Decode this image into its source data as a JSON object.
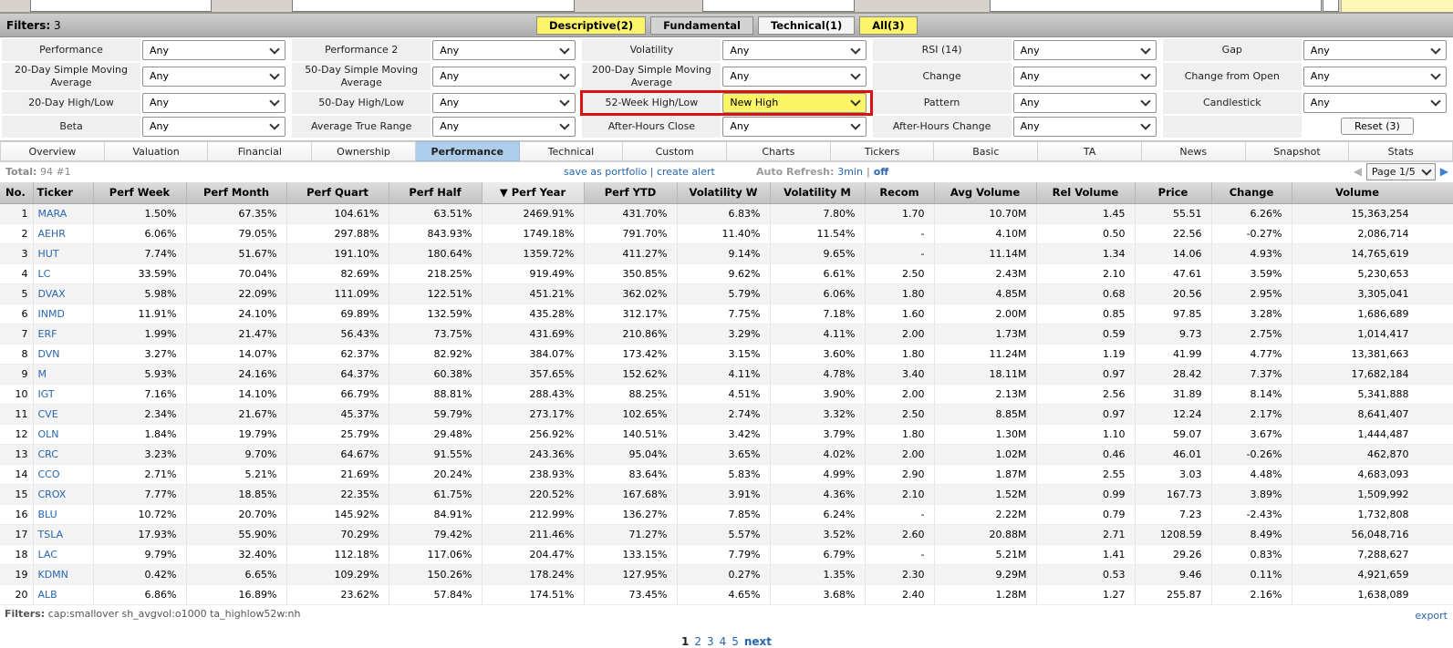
{
  "filters_bar": {
    "label": "Filters:",
    "count": "3",
    "tabs": [
      {
        "label": "Descriptive(2)",
        "variant": "yellow"
      },
      {
        "label": "Fundamental",
        "variant": "gray"
      },
      {
        "label": "Technical(1)",
        "variant": "light"
      },
      {
        "label": "All(3)",
        "variant": "yellow"
      }
    ]
  },
  "filters": {
    "rows": [
      [
        {
          "label": "Performance",
          "value": "Any"
        },
        {
          "label": "Performance 2",
          "value": "Any"
        },
        {
          "label": "Volatility",
          "value": "Any"
        },
        {
          "label": "RSI (14)",
          "value": "Any"
        },
        {
          "label": "Gap",
          "value": "Any"
        }
      ],
      [
        {
          "label": "20-Day Simple Moving Average",
          "value": "Any"
        },
        {
          "label": "50-Day Simple Moving Average",
          "value": "Any"
        },
        {
          "label": "200-Day Simple Moving Average",
          "value": "Any"
        },
        {
          "label": "Change",
          "value": "Any"
        },
        {
          "label": "Change from Open",
          "value": "Any"
        }
      ],
      [
        {
          "label": "20-Day High/Low",
          "value": "Any"
        },
        {
          "label": "50-Day High/Low",
          "value": "Any"
        },
        {
          "label": "52-Week High/Low",
          "value": "New High",
          "highlight": true
        },
        {
          "label": "Pattern",
          "value": "Any"
        },
        {
          "label": "Candlestick",
          "value": "Any"
        }
      ],
      [
        {
          "label": "Beta",
          "value": "Any"
        },
        {
          "label": "Average True Range",
          "value": "Any"
        },
        {
          "label": "After-Hours Close",
          "value": "Any"
        },
        {
          "label": "After-Hours Change",
          "value": "Any"
        },
        {
          "label": "",
          "reset": "Reset (3)"
        }
      ]
    ]
  },
  "view_tabs": {
    "items": [
      "Overview",
      "Valuation",
      "Financial",
      "Ownership",
      "Performance",
      "Technical",
      "Custom",
      "Charts",
      "Tickers",
      "Basic",
      "TA",
      "News",
      "Snapshot",
      "Stats"
    ],
    "active": "Performance"
  },
  "status": {
    "total_label": "Total:",
    "total": "94",
    "position": "#1",
    "save_link": "save as portfolio",
    "divider": "|",
    "alert_link": "create alert",
    "auto_refresh_label": "Auto Refresh:",
    "auto_refresh_value": "3min",
    "auto_refresh_off": "off",
    "page_select": "Page 1/5"
  },
  "table": {
    "sort_arrow": "▼",
    "columns": [
      {
        "label": "No.",
        "key": "no",
        "type": "no"
      },
      {
        "label": "Ticker",
        "key": "ticker",
        "type": "ticker"
      },
      {
        "label": "Perf Week",
        "key": "perf_week",
        "type": "perf"
      },
      {
        "label": "Perf Month",
        "key": "perf_month",
        "type": "perf"
      },
      {
        "label": "Perf Quart",
        "key": "perf_quart",
        "type": "perf"
      },
      {
        "label": "Perf Half",
        "key": "perf_half",
        "type": "perf"
      },
      {
        "label": "Perf Year",
        "key": "perf_year",
        "type": "perf",
        "sorted": true
      },
      {
        "label": "Perf YTD",
        "key": "perf_ytd",
        "type": "perf"
      },
      {
        "label": "Volatility W",
        "key": "vol_w",
        "type": "num"
      },
      {
        "label": "Volatility M",
        "key": "vol_m",
        "type": "num"
      },
      {
        "label": "Recom",
        "key": "recom",
        "type": "recom"
      },
      {
        "label": "Avg Volume",
        "key": "avg_volume",
        "type": "num"
      },
      {
        "label": "Rel Volume",
        "key": "rel_volume",
        "type": "num"
      },
      {
        "label": "Price",
        "key": "price",
        "type": "price"
      },
      {
        "label": "Change",
        "key": "change",
        "type": "change"
      },
      {
        "label": "Volume",
        "key": "volume",
        "type": "num",
        "last": true
      }
    ],
    "rows": [
      {
        "no": "1",
        "ticker": "MARA",
        "perf_week": "1.50%",
        "perf_month": "67.35%",
        "perf_quart": "104.61%",
        "perf_half": "63.51%",
        "perf_year": "2469.91%",
        "perf_ytd": "431.70%",
        "vol_w": "6.83%",
        "vol_m": "7.80%",
        "recom": "1.70",
        "recom_color": "green",
        "avg_volume": "10.70M",
        "rel_volume": "1.45",
        "price": "55.51",
        "change": "6.26%",
        "volume": "15,363,254"
      },
      {
        "no": "2",
        "ticker": "AEHR",
        "perf_week": "6.06%",
        "perf_month": "79.05%",
        "perf_quart": "297.88%",
        "perf_half": "843.93%",
        "perf_year": "1749.18%",
        "perf_ytd": "791.70%",
        "vol_w": "11.40%",
        "vol_m": "11.54%",
        "recom": "-",
        "recom_color": "black",
        "avg_volume": "4.10M",
        "rel_volume": "0.50",
        "price": "22.56",
        "change": "-0.27%",
        "volume": "2,086,714"
      },
      {
        "no": "3",
        "ticker": "HUT",
        "perf_week": "7.74%",
        "perf_month": "51.67%",
        "perf_quart": "191.10%",
        "perf_half": "180.64%",
        "perf_year": "1359.72%",
        "perf_ytd": "411.27%",
        "vol_w": "9.14%",
        "vol_m": "9.65%",
        "recom": "-",
        "recom_color": "black",
        "avg_volume": "11.14M",
        "rel_volume": "1.34",
        "price": "14.06",
        "change": "4.93%",
        "volume": "14,765,619"
      },
      {
        "no": "4",
        "ticker": "LC",
        "perf_week": "33.59%",
        "perf_month": "70.04%",
        "perf_quart": "82.69%",
        "perf_half": "218.25%",
        "perf_year": "919.49%",
        "perf_ytd": "350.85%",
        "vol_w": "9.62%",
        "vol_m": "6.61%",
        "recom": "2.50",
        "recom_color": "black",
        "avg_volume": "2.43M",
        "rel_volume": "2.10",
        "price": "47.61",
        "change": "3.59%",
        "volume": "5,230,653"
      },
      {
        "no": "5",
        "ticker": "DVAX",
        "perf_week": "5.98%",
        "perf_month": "22.09%",
        "perf_quart": "111.09%",
        "perf_half": "122.51%",
        "perf_year": "451.21%",
        "perf_ytd": "362.02%",
        "vol_w": "5.79%",
        "vol_m": "6.06%",
        "recom": "1.80",
        "recom_color": "green",
        "avg_volume": "4.85M",
        "rel_volume": "0.68",
        "price": "20.56",
        "change": "2.95%",
        "volume": "3,305,041"
      },
      {
        "no": "6",
        "ticker": "INMD",
        "perf_week": "11.91%",
        "perf_month": "24.10%",
        "perf_quart": "69.89%",
        "perf_half": "132.59%",
        "perf_year": "435.28%",
        "perf_ytd": "312.17%",
        "vol_w": "7.75%",
        "vol_m": "7.18%",
        "recom": "1.60",
        "recom_color": "green",
        "avg_volume": "2.00M",
        "rel_volume": "0.85",
        "price": "97.85",
        "change": "3.28%",
        "volume": "1,686,689"
      },
      {
        "no": "7",
        "ticker": "ERF",
        "perf_week": "1.99%",
        "perf_month": "21.47%",
        "perf_quart": "56.43%",
        "perf_half": "73.75%",
        "perf_year": "431.69%",
        "perf_ytd": "210.86%",
        "vol_w": "3.29%",
        "vol_m": "4.11%",
        "recom": "2.00",
        "recom_color": "black",
        "avg_volume": "1.73M",
        "rel_volume": "0.59",
        "price": "9.73",
        "change": "2.75%",
        "volume": "1,014,417"
      },
      {
        "no": "8",
        "ticker": "DVN",
        "perf_week": "3.27%",
        "perf_month": "14.07%",
        "perf_quart": "62.37%",
        "perf_half": "82.92%",
        "perf_year": "384.07%",
        "perf_ytd": "173.42%",
        "vol_w": "3.15%",
        "vol_m": "3.60%",
        "recom": "1.80",
        "recom_color": "green",
        "avg_volume": "11.24M",
        "rel_volume": "1.19",
        "price": "41.99",
        "change": "4.77%",
        "volume": "13,381,663"
      },
      {
        "no": "9",
        "ticker": "M",
        "perf_week": "5.93%",
        "perf_month": "24.16%",
        "perf_quart": "64.37%",
        "perf_half": "60.38%",
        "perf_year": "357.65%",
        "perf_ytd": "152.62%",
        "vol_w": "4.11%",
        "vol_m": "4.78%",
        "recom": "3.40",
        "recom_color": "red",
        "avg_volume": "18.11M",
        "rel_volume": "0.97",
        "price": "28.42",
        "change": "7.37%",
        "volume": "17,682,184"
      },
      {
        "no": "10",
        "ticker": "IGT",
        "perf_week": "7.16%",
        "perf_month": "14.10%",
        "perf_quart": "66.79%",
        "perf_half": "88.81%",
        "perf_year": "288.43%",
        "perf_ytd": "88.25%",
        "vol_w": "4.51%",
        "vol_m": "3.90%",
        "recom": "2.00",
        "recom_color": "black",
        "avg_volume": "2.13M",
        "rel_volume": "2.56",
        "price": "31.89",
        "change": "8.14%",
        "volume": "5,341,888"
      },
      {
        "no": "11",
        "ticker": "CVE",
        "perf_week": "2.34%",
        "perf_month": "21.67%",
        "perf_quart": "45.37%",
        "perf_half": "59.79%",
        "perf_year": "273.17%",
        "perf_ytd": "102.65%",
        "vol_w": "2.74%",
        "vol_m": "3.32%",
        "recom": "2.50",
        "recom_color": "black",
        "avg_volume": "8.85M",
        "rel_volume": "0.97",
        "price": "12.24",
        "change": "2.17%",
        "volume": "8,641,407"
      },
      {
        "no": "12",
        "ticker": "OLN",
        "perf_week": "1.84%",
        "perf_month": "19.79%",
        "perf_quart": "25.79%",
        "perf_half": "29.48%",
        "perf_year": "256.92%",
        "perf_ytd": "140.51%",
        "vol_w": "3.42%",
        "vol_m": "3.79%",
        "recom": "1.80",
        "recom_color": "green",
        "avg_volume": "1.30M",
        "rel_volume": "1.10",
        "price": "59.07",
        "change": "3.67%",
        "volume": "1,444,487"
      },
      {
        "no": "13",
        "ticker": "CRC",
        "perf_week": "3.23%",
        "perf_month": "9.70%",
        "perf_quart": "64.67%",
        "perf_half": "91.55%",
        "perf_year": "243.36%",
        "perf_ytd": "95.04%",
        "vol_w": "3.65%",
        "vol_m": "4.02%",
        "recom": "2.00",
        "recom_color": "black",
        "avg_volume": "1.02M",
        "rel_volume": "0.46",
        "price": "46.01",
        "change": "-0.26%",
        "volume": "462,870"
      },
      {
        "no": "14",
        "ticker": "CCO",
        "perf_week": "2.71%",
        "perf_month": "5.21%",
        "perf_quart": "21.69%",
        "perf_half": "20.24%",
        "perf_year": "238.93%",
        "perf_ytd": "83.64%",
        "vol_w": "5.83%",
        "vol_m": "4.99%",
        "recom": "2.90",
        "recom_color": "black",
        "avg_volume": "1.87M",
        "rel_volume": "2.55",
        "price": "3.03",
        "change": "4.48%",
        "volume": "4,683,093"
      },
      {
        "no": "15",
        "ticker": "CROX",
        "perf_week": "7.77%",
        "perf_month": "18.85%",
        "perf_quart": "22.35%",
        "perf_half": "61.75%",
        "perf_year": "220.52%",
        "perf_ytd": "167.68%",
        "vol_w": "3.91%",
        "vol_m": "4.36%",
        "recom": "2.10",
        "recom_color": "black",
        "avg_volume": "1.52M",
        "rel_volume": "0.99",
        "price": "167.73",
        "change": "3.89%",
        "volume": "1,509,992"
      },
      {
        "no": "16",
        "ticker": "BLU",
        "perf_week": "10.72%",
        "perf_month": "20.70%",
        "perf_quart": "145.92%",
        "perf_half": "84.91%",
        "perf_year": "212.99%",
        "perf_ytd": "136.27%",
        "vol_w": "7.85%",
        "vol_m": "6.24%",
        "recom": "-",
        "recom_color": "black",
        "avg_volume": "2.22M",
        "rel_volume": "0.79",
        "price": "7.23",
        "change": "-2.43%",
        "volume": "1,732,808"
      },
      {
        "no": "17",
        "ticker": "TSLA",
        "perf_week": "17.93%",
        "perf_month": "55.90%",
        "perf_quart": "70.29%",
        "perf_half": "79.42%",
        "perf_year": "211.46%",
        "perf_ytd": "71.27%",
        "vol_w": "5.57%",
        "vol_m": "3.52%",
        "recom": "2.60",
        "recom_color": "black",
        "avg_volume": "20.88M",
        "rel_volume": "2.71",
        "price": "1208.59",
        "change": "8.49%",
        "volume": "56,048,716"
      },
      {
        "no": "18",
        "ticker": "LAC",
        "perf_week": "9.79%",
        "perf_month": "32.40%",
        "perf_quart": "112.18%",
        "perf_half": "117.06%",
        "perf_year": "204.47%",
        "perf_ytd": "133.15%",
        "vol_w": "7.79%",
        "vol_m": "6.79%",
        "recom": "-",
        "recom_color": "black",
        "avg_volume": "5.21M",
        "rel_volume": "1.41",
        "price": "29.26",
        "change": "0.83%",
        "volume": "7,288,627"
      },
      {
        "no": "19",
        "ticker": "KDMN",
        "perf_week": "0.42%",
        "perf_month": "6.65%",
        "perf_quart": "109.29%",
        "perf_half": "150.26%",
        "perf_year": "178.24%",
        "perf_ytd": "127.95%",
        "vol_w": "0.27%",
        "vol_m": "1.35%",
        "recom": "2.30",
        "recom_color": "black",
        "avg_volume": "9.29M",
        "rel_volume": "0.53",
        "price": "9.46",
        "change": "0.11%",
        "volume": "4,921,659"
      },
      {
        "no": "20",
        "ticker": "ALB",
        "perf_week": "6.86%",
        "perf_month": "16.89%",
        "perf_quart": "23.62%",
        "perf_half": "57.84%",
        "perf_year": "174.51%",
        "perf_ytd": "73.45%",
        "vol_w": "4.65%",
        "vol_m": "3.68%",
        "recom": "2.40",
        "recom_color": "black",
        "avg_volume": "1.28M",
        "rel_volume": "1.27",
        "price": "255.87",
        "change": "2.16%",
        "volume": "1,638,089"
      }
    ]
  },
  "footer": {
    "filters_label": "Filters:",
    "filters_value": "cap:smallover sh_avgvol:o1000 ta_highlow52w:nh",
    "export_label": "export",
    "pagination": {
      "current": "1",
      "pages": [
        "2",
        "3",
        "4",
        "5"
      ],
      "next": "next"
    }
  },
  "colors": {
    "positive": "#2f9a2f",
    "negative": "#aa2233",
    "link": "#2765af",
    "highlight_yellow": "#fbf566",
    "highlight_red": "#dd1111",
    "selected_tab": "#aecdeb"
  }
}
